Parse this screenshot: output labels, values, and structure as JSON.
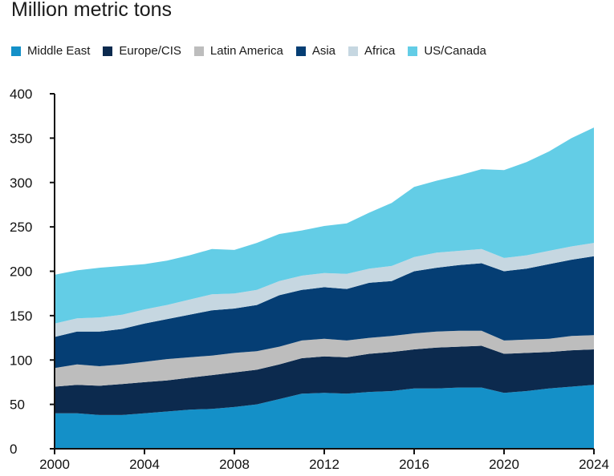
{
  "chart_data": {
    "type": "area",
    "stacked": true,
    "title": "",
    "subtitle": "Million metric tons",
    "xlabel": "",
    "ylabel": "",
    "xlim": [
      2000,
      2024
    ],
    "ylim": [
      0,
      400
    ],
    "x_ticks": [
      2000,
      2004,
      2008,
      2012,
      2016,
      2020,
      2024
    ],
    "y_ticks": [
      0,
      50,
      100,
      150,
      200,
      250,
      300,
      350,
      400
    ],
    "grid": false,
    "legend_position": "top-left",
    "x": [
      2000,
      2001,
      2002,
      2003,
      2004,
      2005,
      2006,
      2007,
      2008,
      2009,
      2010,
      2011,
      2012,
      2013,
      2014,
      2015,
      2016,
      2017,
      2018,
      2019,
      2020,
      2021,
      2022,
      2023,
      2024
    ],
    "series": [
      {
        "name": "Middle East",
        "color": "#1490c8",
        "values": [
          40,
          40,
          38,
          38,
          40,
          42,
          44,
          45,
          47,
          50,
          56,
          62,
          63,
          62,
          64,
          65,
          68,
          68,
          69,
          69,
          63,
          65,
          68,
          70,
          72
        ]
      },
      {
        "name": "Europe/CIS",
        "color": "#0c2a4e",
        "values": [
          30,
          32,
          33,
          35,
          35,
          35,
          36,
          38,
          39,
          39,
          39,
          40,
          41,
          41,
          43,
          44,
          44,
          46,
          46,
          47,
          44,
          43,
          41,
          41,
          40
        ]
      },
      {
        "name": "Latin America",
        "color": "#bdbdbd",
        "values": [
          21,
          23,
          22,
          22,
          23,
          24,
          23,
          22,
          22,
          21,
          20,
          20,
          20,
          19,
          18,
          18,
          18,
          18,
          18,
          17,
          15,
          15,
          15,
          16,
          16
        ]
      },
      {
        "name": "Asia",
        "color": "#053e74",
        "values": [
          35,
          37,
          39,
          40,
          43,
          45,
          48,
          51,
          50,
          52,
          58,
          57,
          58,
          58,
          62,
          62,
          70,
          72,
          74,
          76,
          78,
          80,
          84,
          86,
          89
        ]
      },
      {
        "name": "Africa",
        "color": "#c6d7e1",
        "values": [
          15,
          15,
          16,
          16,
          16,
          16,
          17,
          18,
          17,
          17,
          16,
          16,
          16,
          17,
          16,
          17,
          16,
          17,
          16,
          16,
          15,
          15,
          15,
          15,
          15
        ]
      },
      {
        "name": "US/Canada",
        "color": "#63cde6",
        "values": [
          55,
          54,
          56,
          55,
          51,
          50,
          50,
          51,
          49,
          53,
          53,
          51,
          53,
          57,
          63,
          71,
          79,
          81,
          85,
          90,
          99,
          105,
          112,
          122,
          130
        ]
      }
    ]
  }
}
